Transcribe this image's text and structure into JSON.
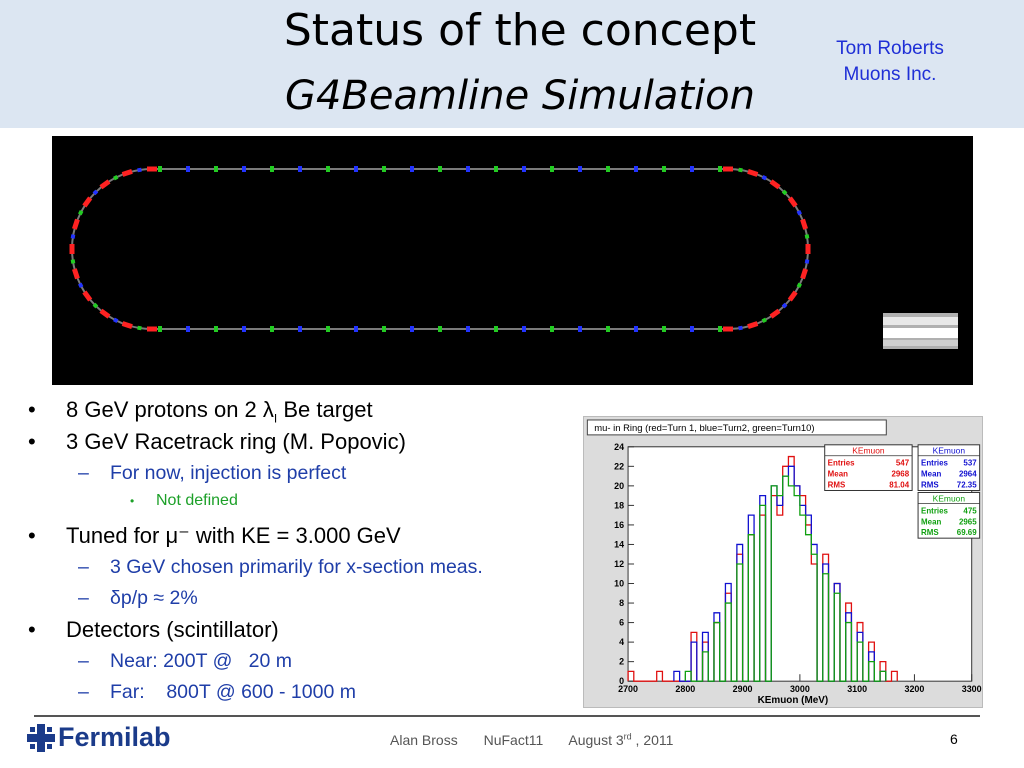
{
  "header": {
    "title": "Status of the concept",
    "subtitle": "G4Beamline Simulation",
    "author_line1": "Tom Roberts",
    "author_line2": "Muons Inc."
  },
  "bullets": {
    "item1_text": "8 GeV protons on 2 λ",
    "item1_sub": "I",
    "item1_tail": " Be target",
    "item2": "3 GeV Racetrack ring (M. Popovic)",
    "item2_sub1": "For now, injection is perfect",
    "item2_sub1_sub": "Not defined",
    "item3": "Tuned for μ⁻ with KE = 3.000 GeV",
    "item3_sub1": "3 GeV chosen primarily for x-section meas.",
    "item3_sub2": "δp/p ≈ 2%",
    "item4": "Detectors (scintillator)",
    "item4_sub1": "Near: 200T @   20 m",
    "item4_sub2": "Far:    800T @ 600 - 1000 m",
    "bullet_glyph": "•",
    "dash_glyph": "–"
  },
  "histogram": {
    "title": "mu- in Ring (red=Turn 1, blue=Turn2, green=Turn10)",
    "xlabel": "KEmuon (MeV)",
    "x_ticks": [
      "2700",
      "2800",
      "2900",
      "3000",
      "3100",
      "3200",
      "3300"
    ],
    "y_ticks": [
      "0",
      "2",
      "4",
      "6",
      "8",
      "10",
      "12",
      "14",
      "16",
      "18",
      "20",
      "22",
      "24"
    ],
    "stat_boxes": [
      {
        "name": "KEmuon",
        "color": "#e01010",
        "entries_label": "Entries",
        "entries": "547",
        "mean_label": "Mean",
        "mean": "2968",
        "rms_label": "RMS",
        "rms": "81.04"
      },
      {
        "name": "KEmuon",
        "color": "#1010d0",
        "entries_label": "Entries",
        "entries": "537",
        "mean_label": "Mean",
        "mean": "2964",
        "rms_label": "RMS",
        "rms": "72.35"
      },
      {
        "name": "KEmuon",
        "color": "#10a010",
        "entries_label": "Entries",
        "entries": "475",
        "mean_label": "Mean",
        "mean": "2965",
        "rms_label": "RMS",
        "rms": "69.69"
      }
    ]
  },
  "chart_data": {
    "type": "histogram",
    "title": "mu- in Ring (red=Turn 1, blue=Turn2, green=Turn10)",
    "xlabel": "KEmuon (MeV)",
    "ylabel": "",
    "xlim": [
      2700,
      3300
    ],
    "ylim": [
      0,
      24
    ],
    "series": [
      {
        "name": "red=Turn 1",
        "color": "#e01010",
        "x": [
          2700,
          2750,
          2810,
          2830,
          2850,
          2870,
          2890,
          2910,
          2930,
          2950,
          2960,
          2970,
          2980,
          2990,
          3000,
          3010,
          3020,
          3040,
          3060,
          3080,
          3100,
          3120,
          3140,
          3160
        ],
        "values": [
          1,
          1,
          5,
          4,
          6,
          9,
          13,
          15,
          17,
          19,
          17,
          22,
          23,
          20,
          19,
          16,
          12,
          13,
          10,
          8,
          6,
          4,
          2,
          1
        ]
      },
      {
        "name": "blue=Turn2",
        "color": "#1010d0",
        "x": [
          2780,
          2810,
          2830,
          2850,
          2870,
          2890,
          2910,
          2930,
          2950,
          2960,
          2970,
          2980,
          2990,
          3000,
          3010,
          3020,
          3040,
          3060,
          3080,
          3100,
          3120,
          3140
        ],
        "values": [
          1,
          4,
          5,
          7,
          10,
          14,
          17,
          19,
          20,
          18,
          21,
          22,
          20,
          18,
          17,
          14,
          12,
          10,
          7,
          5,
          3,
          1
        ]
      },
      {
        "name": "green=Turn10",
        "color": "#10a010",
        "x": [
          2800,
          2830,
          2850,
          2870,
          2890,
          2910,
          2930,
          2950,
          2960,
          2970,
          2980,
          2990,
          3000,
          3010,
          3020,
          3040,
          3060,
          3080,
          3100,
          3120,
          3140
        ],
        "values": [
          1,
          3,
          6,
          8,
          12,
          15,
          18,
          20,
          19,
          21,
          20,
          19,
          17,
          15,
          13,
          11,
          9,
          6,
          4,
          2,
          1
        ]
      }
    ]
  },
  "footer": {
    "logo": "Fermilab",
    "presenter": "Alan Bross",
    "event": "NuFact11",
    "date_pre": "August 3",
    "date_sup": "rd",
    "date_post": " , 2011",
    "page": "6"
  }
}
